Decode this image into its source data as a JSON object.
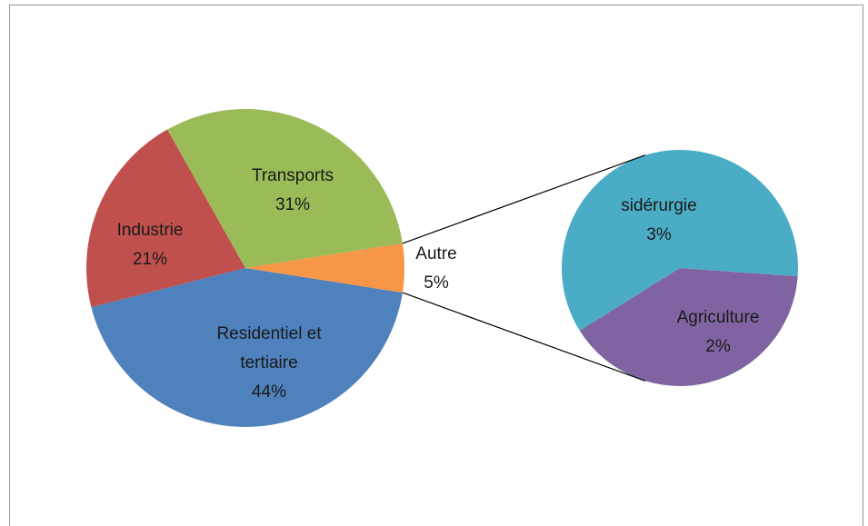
{
  "chart_data": {
    "type": "pie_of_pie",
    "categories": [
      "Residentiel et tertiaire",
      "Industrie",
      "Transports",
      "Autre"
    ],
    "values": [
      44,
      21,
      31,
      5
    ],
    "value_labels": [
      "44%",
      "21%",
      "31%",
      "5%"
    ],
    "colors": [
      "#4f81bd",
      "#c0504d",
      "#9bbb59",
      "#f79646"
    ],
    "secondary": {
      "categories": [
        "Agriculture",
        "sidérurgie"
      ],
      "values": [
        2,
        3
      ],
      "value_labels": [
        "2%",
        "3%"
      ],
      "colors": [
        "#8064a2",
        "#4bacc6"
      ]
    }
  }
}
